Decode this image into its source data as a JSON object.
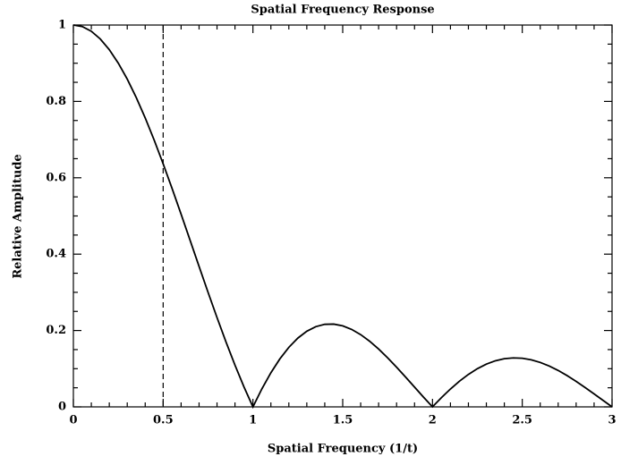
{
  "chart_data": {
    "type": "line",
    "title": "Spatial Frequency Response",
    "xlabel": "Spatial Frequency (1/t)",
    "ylabel": "Relative Amplitude",
    "x": [
      0,
      0.05,
      0.1,
      0.15,
      0.2,
      0.25,
      0.3,
      0.35,
      0.4,
      0.45,
      0.5,
      0.55,
      0.6,
      0.65,
      0.7,
      0.75,
      0.8,
      0.85,
      0.9,
      0.95,
      1,
      1.05,
      1.1,
      1.15,
      1.2,
      1.25,
      1.3,
      1.35,
      1.4,
      1.45,
      1.5,
      1.55,
      1.6,
      1.65,
      1.7,
      1.75,
      1.8,
      1.85,
      1.9,
      1.95,
      2,
      2.05,
      2.1,
      2.15,
      2.2,
      2.25,
      2.3,
      2.35,
      2.4,
      2.45,
      2.5,
      2.55,
      2.6,
      2.65,
      2.7,
      2.75,
      2.8,
      2.85,
      2.9,
      2.95,
      3
    ],
    "series": [
      {
        "color": "#000000",
        "values": [
          1,
          0.9959,
          0.9836,
          0.9634,
          0.9355,
          0.9003,
          0.8584,
          0.8103,
          0.7568,
          0.6986,
          0.6366,
          0.5716,
          0.5046,
          0.4363,
          0.3679,
          0.3001,
          0.2339,
          0.17,
          0.1093,
          0.0524,
          0,
          0.0474,
          0.0894,
          0.1257,
          0.1559,
          0.1801,
          0.1981,
          0.2101,
          0.2162,
          0.2168,
          0.2122,
          0.2028,
          0.1892,
          0.1719,
          0.1515,
          0.1286,
          0.1039,
          0.0781,
          0.0518,
          0.0255,
          0,
          0.0243,
          0.0468,
          0.0672,
          0.085,
          0.1,
          0.112,
          0.1207,
          0.1261,
          0.1283,
          0.1273,
          0.1233,
          0.1164,
          0.107,
          0.0954,
          0.0818,
          0.0668,
          0.0507,
          0.0339,
          0.0169,
          0
        ]
      }
    ],
    "vline": 0.5,
    "xlim": [
      0,
      3
    ],
    "xticks": [
      0,
      0.5,
      1,
      1.5,
      2,
      2.5,
      3
    ],
    "ylim": [
      0,
      1
    ],
    "yticks": [
      0,
      0.2,
      0.4,
      0.6,
      0.8,
      1
    ],
    "grid": false
  }
}
